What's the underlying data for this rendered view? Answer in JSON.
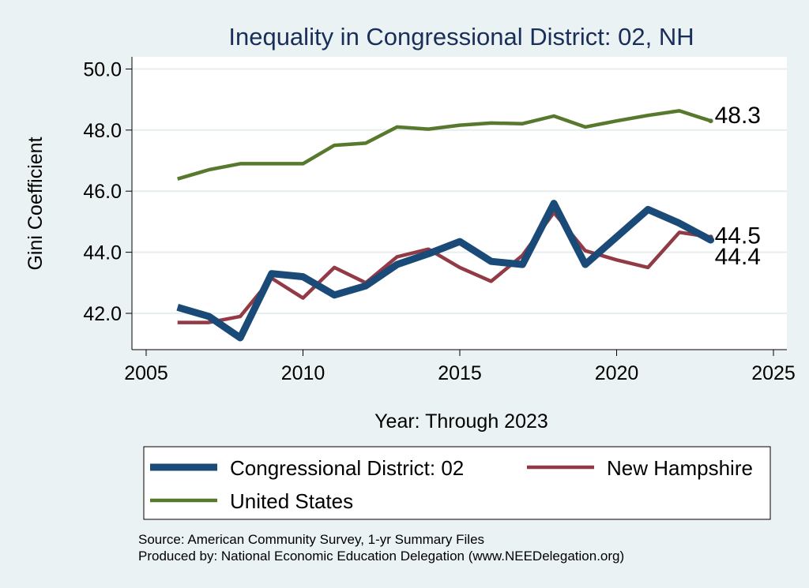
{
  "chart_data": {
    "type": "line",
    "title": "Inequality in Congressional District:  02, NH",
    "xlabel": "Year: Through 2023",
    "ylabel": "Gini Coefficient",
    "xlim": [
      2005,
      2025
    ],
    "ylim": [
      41.0,
      50.2
    ],
    "x_ticks": [
      2005,
      2010,
      2015,
      2020,
      2025
    ],
    "x_tick_labels": [
      "2005",
      "2010",
      "2015",
      "2020",
      "2025"
    ],
    "y_ticks": [
      42,
      44,
      46,
      48,
      50
    ],
    "y_tick_labels": [
      "42.0",
      "44.0",
      "46.0",
      "48.0",
      "50.0"
    ],
    "grid": true,
    "legend_position": "bottom",
    "x": [
      2006,
      2007,
      2008,
      2009,
      2010,
      2011,
      2012,
      2013,
      2014,
      2015,
      2016,
      2017,
      2018,
      2019,
      2020,
      2021,
      2022,
      2023
    ],
    "series": [
      {
        "name": "Congressional District:  02",
        "color": "#1a4a78",
        "values": [
          42.2,
          41.9,
          41.2,
          43.3,
          43.2,
          42.6,
          42.9,
          43.6,
          43.95,
          44.35,
          43.7,
          43.6,
          45.6,
          43.6,
          44.5,
          45.4,
          44.95,
          44.4
        ],
        "end_label": "44.4"
      },
      {
        "name": "New Hampshire",
        "color": "#923a45",
        "values": [
          41.7,
          41.7,
          41.9,
          43.15,
          42.5,
          43.5,
          43.0,
          43.85,
          44.1,
          43.5,
          43.05,
          43.9,
          45.3,
          44.05,
          43.75,
          43.5,
          44.65,
          44.5
        ],
        "end_label": "44.5"
      },
      {
        "name": "United States",
        "color": "#56792d",
        "values": [
          46.4,
          46.7,
          46.9,
          46.9,
          46.9,
          47.5,
          47.57,
          48.1,
          48.03,
          48.16,
          48.23,
          48.21,
          48.46,
          48.1,
          48.3,
          48.48,
          48.63,
          48.3
        ],
        "end_label": "48.3"
      }
    ]
  },
  "source_lines": [
    "Source: American Community Survey, 1-yr Summary Files",
    "Produced by: National Economic Education Delegation (www.NEEDelegation.org)"
  ]
}
